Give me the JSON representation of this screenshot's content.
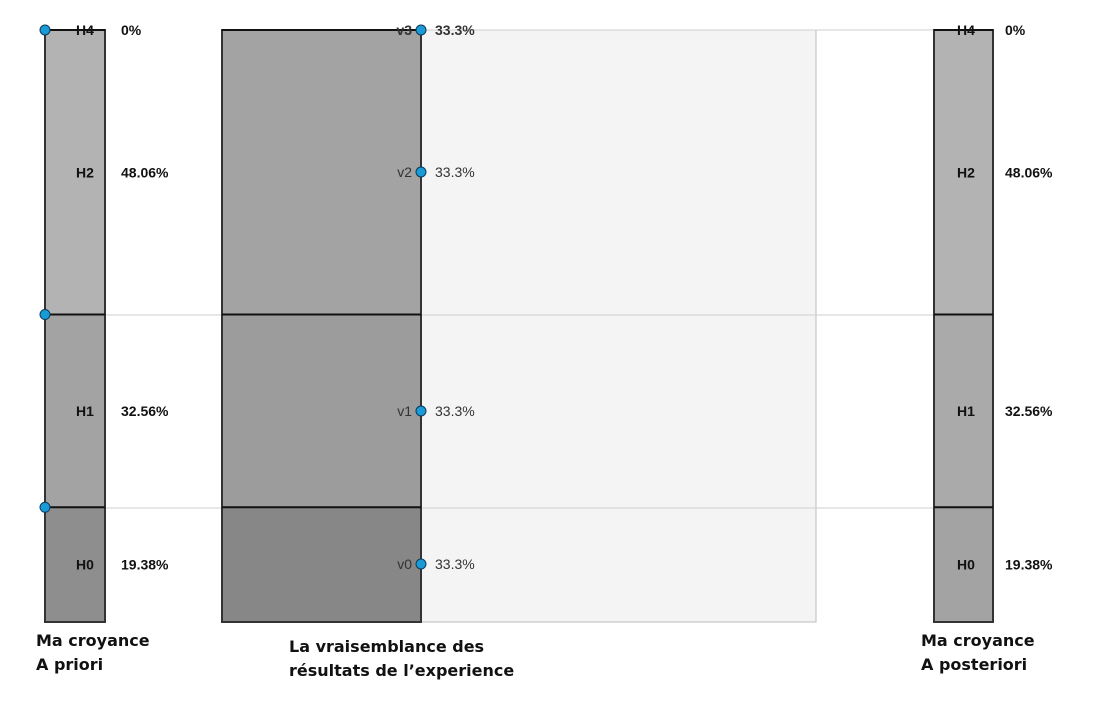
{
  "prior": {
    "caption_line1": "Ma croyance",
    "caption_line2": "A priori",
    "segments": [
      {
        "id": "H0",
        "label": "H0",
        "percent_text": "19.38%",
        "fraction": 0.1938,
        "color": "#8e8e8e"
      },
      {
        "id": "H1",
        "label": "H1",
        "percent_text": "32.56%",
        "fraction": 0.3256,
        "color": "#a3a3a3"
      },
      {
        "id": "H2",
        "label": "H2",
        "percent_text": "48.06%",
        "fraction": 0.4806,
        "color": "#b3b3b3"
      },
      {
        "id": "H4",
        "label": "H4",
        "percent_text": "0%",
        "fraction": 0.0,
        "color": "#b3b3b3"
      }
    ]
  },
  "likelihood": {
    "caption_line1": "La vraisemblance  des",
    "caption_line2": "résultats de l’experience",
    "handles": [
      {
        "id": "v0",
        "label": "v0",
        "value_text": "33.3%"
      },
      {
        "id": "v1",
        "label": "v1",
        "value_text": "33.3%"
      },
      {
        "id": "v2",
        "label": "v2",
        "value_text": "33.3%"
      },
      {
        "id": "v3",
        "label": "v3",
        "value_text": "33.3%"
      }
    ],
    "fill_colors": [
      "#878787",
      "#9c9c9c",
      "#a3a3a3"
    ],
    "background_color": "#f4f4f4"
  },
  "posterior": {
    "caption_line1": "Ma croyance",
    "caption_line2": "A posteriori",
    "segments": [
      {
        "id": "H0",
        "label": "H0",
        "percent_text": "19.38%",
        "fraction": 0.1938,
        "color": "#a3a3a3"
      },
      {
        "id": "H1",
        "label": "H1",
        "percent_text": "32.56%",
        "fraction": 0.3256,
        "color": "#aaaaaa"
      },
      {
        "id": "H2",
        "label": "H2",
        "percent_text": "48.06%",
        "fraction": 0.4806,
        "color": "#b3b3b3"
      },
      {
        "id": "H4",
        "label": "H4",
        "percent_text": "0%",
        "fraction": 0.0,
        "color": "#b3b3b3"
      }
    ]
  },
  "colors": {
    "handle_fill": "#1a9bd7",
    "handle_stroke": "#0b3a57",
    "boundary_line": "#111111",
    "guide_line": "#cfcfcf"
  }
}
